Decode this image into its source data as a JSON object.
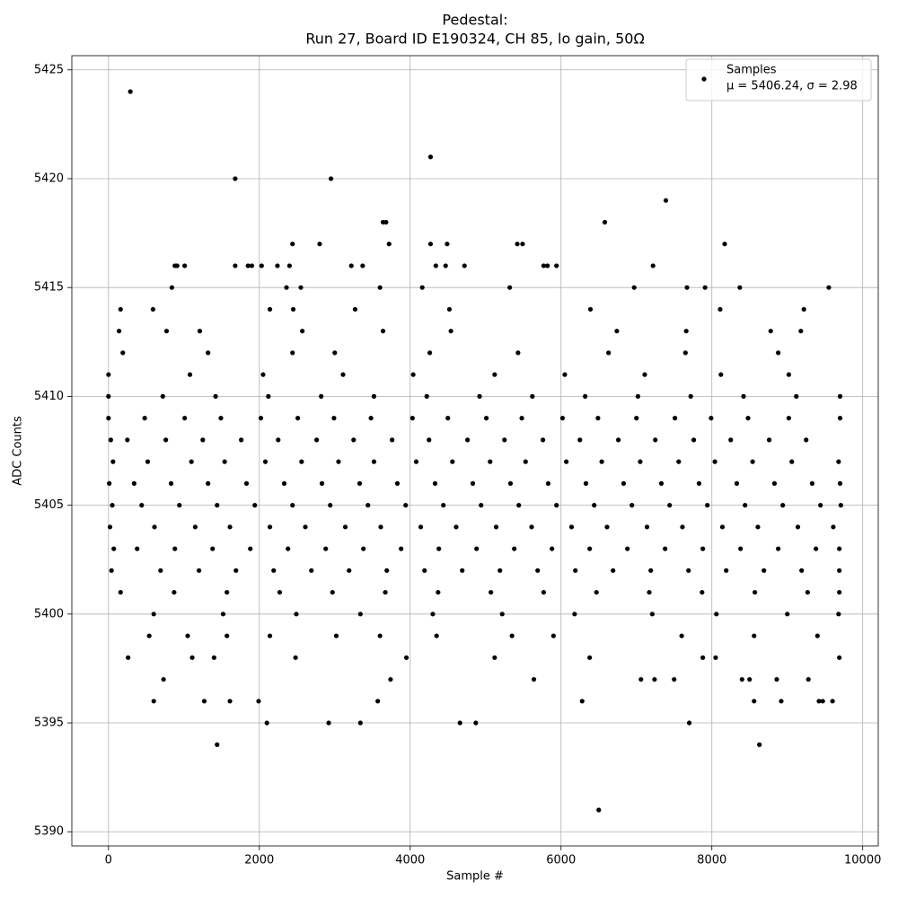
{
  "chart_data": {
    "type": "scatter",
    "title": "Pedestal:",
    "subtitle": "Run 27, Board ID E190324, CH 85, lo gain, 50Ω",
    "x_label": "Sample #",
    "y_label": "ADC Counts",
    "xlim": [
      -486,
      10206
    ],
    "ylim": [
      5389.35,
      5425.65
    ],
    "xticks": [
      0,
      2000,
      4000,
      6000,
      8000,
      10000
    ],
    "yticks": [
      5390,
      5395,
      5400,
      5405,
      5410,
      5415,
      5420,
      5425
    ],
    "grid": true,
    "legend": "upper right",
    "annotation": "μ = 5406.24, σ = 2.98",
    "series": [
      {
        "name": "Samples",
        "color": "#000000",
        "x": [
          0,
          480,
          1010,
          1490,
          2020,
          2510,
          2990,
          3480,
          4030,
          4500,
          5010,
          5480,
          6020,
          6490,
          7000,
          7510,
          7990,
          8480,
          9020,
          9700,
          30,
          250,
          760,
          1250,
          1760,
          2250,
          2760,
          3250,
          3760,
          4250,
          4760,
          5250,
          5760,
          6250,
          6760,
          7250,
          7760,
          8250,
          8760,
          9250,
          60,
          520,
          1100,
          1540,
          2080,
          2560,
          3050,
          3520,
          4080,
          4560,
          5060,
          5530,
          6070,
          6540,
          7050,
          7560,
          8040,
          8540,
          9060,
          9680,
          10,
          340,
          830,
          1320,
          1830,
          2330,
          2830,
          3330,
          3830,
          4330,
          4830,
          5330,
          5830,
          6330,
          6830,
          7330,
          7830,
          8330,
          8830,
          9330,
          9700,
          50,
          440,
          940,
          1440,
          1940,
          2440,
          2940,
          3440,
          3940,
          4440,
          4940,
          5440,
          5940,
          6440,
          6940,
          7440,
          7940,
          8440,
          8940,
          9440,
          9710,
          20,
          610,
          1150,
          1610,
          2140,
          2610,
          3140,
          3610,
          4140,
          4610,
          5140,
          5610,
          6140,
          6610,
          7140,
          7610,
          8140,
          8610,
          9140,
          9610,
          70,
          380,
          880,
          1380,
          1880,
          2380,
          2880,
          3380,
          3880,
          4380,
          4880,
          5380,
          5880,
          6380,
          6880,
          7380,
          7880,
          8380,
          8880,
          9380,
          9690,
          40,
          690,
          1200,
          1690,
          2190,
          2690,
          3190,
          3690,
          4190,
          4690,
          5190,
          5690,
          6190,
          6690,
          7190,
          7690,
          8190,
          8690,
          9190,
          9690,
          0,
          720,
          1420,
          2120,
          2820,
          3520,
          4220,
          4920,
          5620,
          6320,
          7020,
          7720,
          8420,
          9120,
          9700,
          160,
          870,
          1570,
          2270,
          2970,
          3670,
          4370,
          5070,
          5770,
          6470,
          7170,
          7870,
          8570,
          9270,
          9690,
          0,
          1080,
          2050,
          3110,
          4040,
          5120,
          6050,
          7110,
          8120,
          9020,
          600,
          1520,
          2490,
          3340,
          4300,
          5220,
          6180,
          7210,
          8060,
          9000,
          9680,
          540,
          1050,
          1570,
          2140,
          3020,
          3600,
          4350,
          5350,
          5900,
          7600,
          8560,
          9400,
          190,
          1320,
          2440,
          3000,
          4260,
          5430,
          6630,
          7650,
          8880,
          260,
          1110,
          1400,
          2480,
          3950,
          5120,
          6380,
          7880,
          8050,
          9690,
          140,
          770,
          1210,
          2570,
          3640,
          4540,
          6740,
          7660,
          8780,
          9180,
          160,
          590,
          2140,
          2450,
          3270,
          4520,
          6390,
          8110,
          9220,
          840,
          2360,
          2550,
          3600,
          4160,
          5320,
          6970,
          7670,
          7910,
          8370,
          9550,
          290,
          4270,
          1680,
          2950,
          7390,
          3640,
          3680,
          6580,
          2440,
          2800,
          3720,
          4270,
          4490,
          5420,
          5490,
          8170,
          880,
          910,
          1010,
          1680,
          1850,
          1900,
          2030,
          2240,
          2400,
          3220,
          3370,
          4340,
          4470,
          4720,
          5770,
          5820,
          5940,
          7220,
          6500,
          1440,
          8630,
          2100,
          2920,
          3340,
          4660,
          4870,
          7700,
          600,
          1270,
          1610,
          1990,
          3570,
          6280,
          8560,
          8920,
          9420,
          9470,
          9600,
          730,
          3740,
          5640,
          7060,
          7240,
          7500,
          8400,
          8500,
          8860,
          9280
        ],
        "values": [
          5409,
          5409,
          5409,
          5409,
          5409,
          5409,
          5409,
          5409,
          5409,
          5409,
          5409,
          5409,
          5409,
          5409,
          5409,
          5409,
          5409,
          5409,
          5409,
          5409,
          5408,
          5408,
          5408,
          5408,
          5408,
          5408,
          5408,
          5408,
          5408,
          5408,
          5408,
          5408,
          5408,
          5408,
          5408,
          5408,
          5408,
          5408,
          5408,
          5408,
          5407,
          5407,
          5407,
          5407,
          5407,
          5407,
          5407,
          5407,
          5407,
          5407,
          5407,
          5407,
          5407,
          5407,
          5407,
          5407,
          5407,
          5407,
          5407,
          5407,
          5406,
          5406,
          5406,
          5406,
          5406,
          5406,
          5406,
          5406,
          5406,
          5406,
          5406,
          5406,
          5406,
          5406,
          5406,
          5406,
          5406,
          5406,
          5406,
          5406,
          5406,
          5405,
          5405,
          5405,
          5405,
          5405,
          5405,
          5405,
          5405,
          5405,
          5405,
          5405,
          5405,
          5405,
          5405,
          5405,
          5405,
          5405,
          5405,
          5405,
          5405,
          5405,
          5404,
          5404,
          5404,
          5404,
          5404,
          5404,
          5404,
          5404,
          5404,
          5404,
          5404,
          5404,
          5404,
          5404,
          5404,
          5404,
          5404,
          5404,
          5404,
          5404,
          5403,
          5403,
          5403,
          5403,
          5403,
          5403,
          5403,
          5403,
          5403,
          5403,
          5403,
          5403,
          5403,
          5403,
          5403,
          5403,
          5403,
          5403,
          5403,
          5403,
          5403,
          5402,
          5402,
          5402,
          5402,
          5402,
          5402,
          5402,
          5402,
          5402,
          5402,
          5402,
          5402,
          5402,
          5402,
          5402,
          5402,
          5402,
          5402,
          5402,
          5402,
          5410,
          5410,
          5410,
          5410,
          5410,
          5410,
          5410,
          5410,
          5410,
          5410,
          5410,
          5410,
          5410,
          5410,
          5410,
          5401,
          5401,
          5401,
          5401,
          5401,
          5401,
          5401,
          5401,
          5401,
          5401,
          5401,
          5401,
          5401,
          5401,
          5401,
          5411,
          5411,
          5411,
          5411,
          5411,
          5411,
          5411,
          5411,
          5411,
          5411,
          5400,
          5400,
          5400,
          5400,
          5400,
          5400,
          5400,
          5400,
          5400,
          5400,
          5400,
          5399,
          5399,
          5399,
          5399,
          5399,
          5399,
          5399,
          5399,
          5399,
          5399,
          5399,
          5399,
          5412,
          5412,
          5412,
          5412,
          5412,
          5412,
          5412,
          5412,
          5412,
          5398,
          5398,
          5398,
          5398,
          5398,
          5398,
          5398,
          5398,
          5398,
          5398,
          5413,
          5413,
          5413,
          5413,
          5413,
          5413,
          5413,
          5413,
          5413,
          5413,
          5414,
          5414,
          5414,
          5414,
          5414,
          5414,
          5414,
          5414,
          5414,
          5415,
          5415,
          5415,
          5415,
          5415,
          5415,
          5415,
          5415,
          5415,
          5415,
          5415,
          5424,
          5421,
          5420,
          5420,
          5419,
          5418,
          5418,
          5418,
          5417,
          5417,
          5417,
          5417,
          5417,
          5417,
          5417,
          5417,
          5416,
          5416,
          5416,
          5416,
          5416,
          5416,
          5416,
          5416,
          5416,
          5416,
          5416,
          5416,
          5416,
          5416,
          5416,
          5416,
          5416,
          5416,
          5391,
          5394,
          5394,
          5395,
          5395,
          5395,
          5395,
          5395,
          5395,
          5396,
          5396,
          5396,
          5396,
          5396,
          5396,
          5396,
          5396,
          5396,
          5396,
          5396,
          5397,
          5397,
          5397,
          5397,
          5397,
          5397,
          5397,
          5397,
          5397,
          5397
        ]
      }
    ]
  }
}
